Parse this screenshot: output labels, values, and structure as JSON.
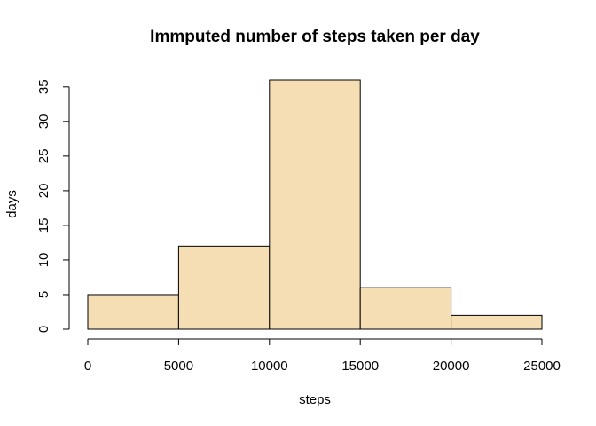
{
  "chart_data": {
    "type": "bar",
    "title": "Immputed number of steps taken per day",
    "xlabel": "steps",
    "ylabel": "days",
    "bins": [
      {
        "from": 0,
        "to": 5000,
        "count": 5
      },
      {
        "from": 5000,
        "to": 10000,
        "count": 12
      },
      {
        "from": 10000,
        "to": 15000,
        "count": 36
      },
      {
        "from": 15000,
        "to": 20000,
        "count": 6
      },
      {
        "from": 20000,
        "to": 25000,
        "count": 2
      }
    ],
    "xlim": [
      0,
      25000
    ],
    "ylim": [
      0,
      35
    ],
    "x_ticks": [
      0,
      5000,
      10000,
      15000,
      20000,
      25000
    ],
    "x_tick_labels": [
      "0",
      "5000",
      "10000",
      "15000",
      "20000",
      "25000"
    ],
    "y_ticks": [
      0,
      5,
      10,
      15,
      20,
      25,
      30,
      35
    ],
    "y_tick_labels": [
      "0",
      "5",
      "10",
      "15",
      "20",
      "25",
      "30",
      "35"
    ],
    "bar_fill": "#F5DEB3",
    "bar_stroke": "#000000",
    "grid": false
  }
}
